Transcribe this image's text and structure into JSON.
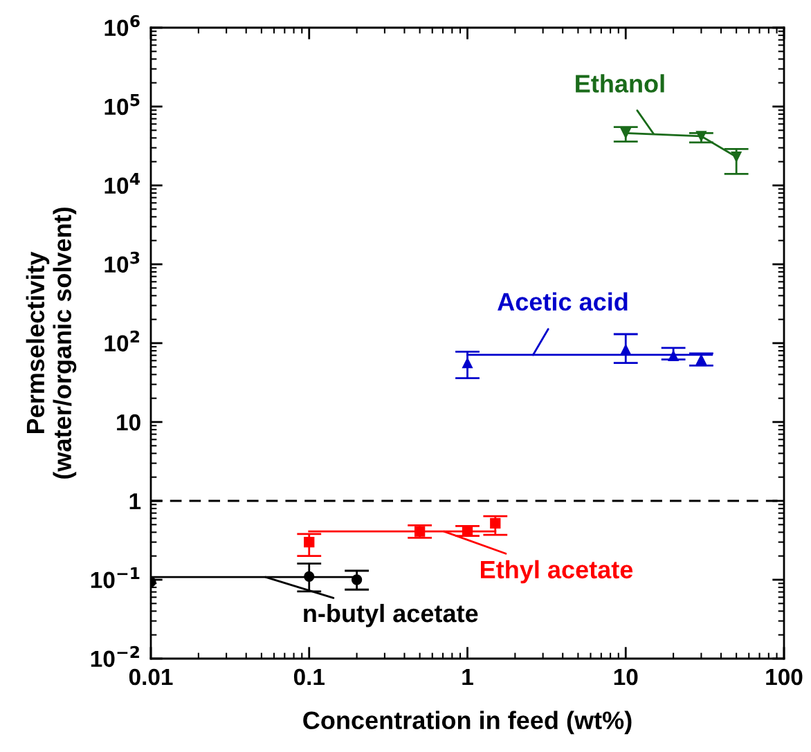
{
  "chart_data": {
    "type": "scatter",
    "xlabel": "Concentration in feed (wt%)",
    "ylabel": "Permselectivity\n(water/organic solvent)",
    "log": "xy",
    "xlim": [
      0.01,
      100
    ],
    "xticks": [
      0.01,
      0.1,
      1,
      10,
      100
    ],
    "ylim": [
      0.01,
      1000000
    ],
    "yticks": [
      {
        "value": 0.01,
        "label": "10$^{−2}$"
      },
      {
        "value": 0.1,
        "label": "10$^{−1}$"
      },
      1,
      10,
      {
        "value": 100,
        "label": "10$^{2}$"
      },
      {
        "value": 1000,
        "label": "10$^{3}$"
      },
      {
        "value": 10000,
        "label": "10$^{4}$"
      },
      {
        "value": 100000,
        "label": "10$^{5}$"
      },
      {
        "value": 1000000,
        "label": "10$^{6}$"
      }
    ],
    "grid": false,
    "legend": false,
    "ref_lines": [
      {
        "axis": "y",
        "value": 1,
        "color": "#000000",
        "line_style": "dashed"
      }
    ],
    "series": [
      {
        "type": "line",
        "color": "#1a6b1a",
        "marker": "triangle_down",
        "line_style": "solid",
        "x": [
          10,
          30,
          50
        ],
        "values": [
          46000,
          42000,
          23000
        ],
        "errors": [
          [
            36000,
            55000
          ],
          [
            35000,
            46000
          ],
          [
            14000,
            29000
          ]
        ]
      },
      {
        "color": "#0000cc",
        "marker": "triangle",
        "x": [
          1,
          10,
          20,
          30
        ],
        "values": [
          56,
          83,
          69,
          62
        ],
        "errors": [
          [
            36,
            78
          ],
          [
            56,
            130
          ],
          [
            62,
            87
          ],
          [
            52,
            74
          ]
        ]
      },
      {
        "type": "line",
        "color": "#0000cc",
        "marker": "none",
        "line_style": "solid",
        "x": [
          1,
          35
        ],
        "values": [
          71,
          71
        ]
      },
      {
        "color": "#ff0000",
        "marker": "square",
        "x": [
          0.1,
          0.5,
          1,
          1.5
        ],
        "values": [
          0.3,
          0.41,
          0.42,
          0.52
        ],
        "errors": [
          [
            0.2,
            0.38
          ],
          [
            0.34,
            0.49
          ],
          [
            0.36,
            0.48
          ],
          [
            0.37,
            0.64
          ]
        ]
      },
      {
        "type": "line",
        "color": "#ff0000",
        "marker": "none",
        "line_style": "solid",
        "x": [
          0.1,
          1.5
        ],
        "values": [
          0.41,
          0.41
        ]
      },
      {
        "color": "#000000",
        "marker": "circle",
        "x": [
          0.01,
          0.1,
          0.2
        ],
        "values": [
          0.094,
          0.11,
          0.1
        ],
        "errors": [
          null,
          [
            0.071,
            0.16
          ],
          [
            0.075,
            0.13
          ]
        ]
      },
      {
        "type": "line",
        "color": "#000000",
        "marker": "none",
        "line_style": "solid",
        "x": [
          0.01,
          0.2
        ],
        "values": [
          0.108,
          0.108
        ]
      }
    ],
    "annotations": [
      {
        "text": "Ethanol",
        "x": 15,
        "y": 45000
      },
      {
        "text": "Acetic acid",
        "x": 2.6,
        "y": 71
      },
      {
        "text": "Ethyl acetate",
        "x": 0.71,
        "y": 0.41
      },
      {
        "text": "n-butyl acetate",
        "x": 0.053,
        "y": 0.108
      }
    ]
  }
}
